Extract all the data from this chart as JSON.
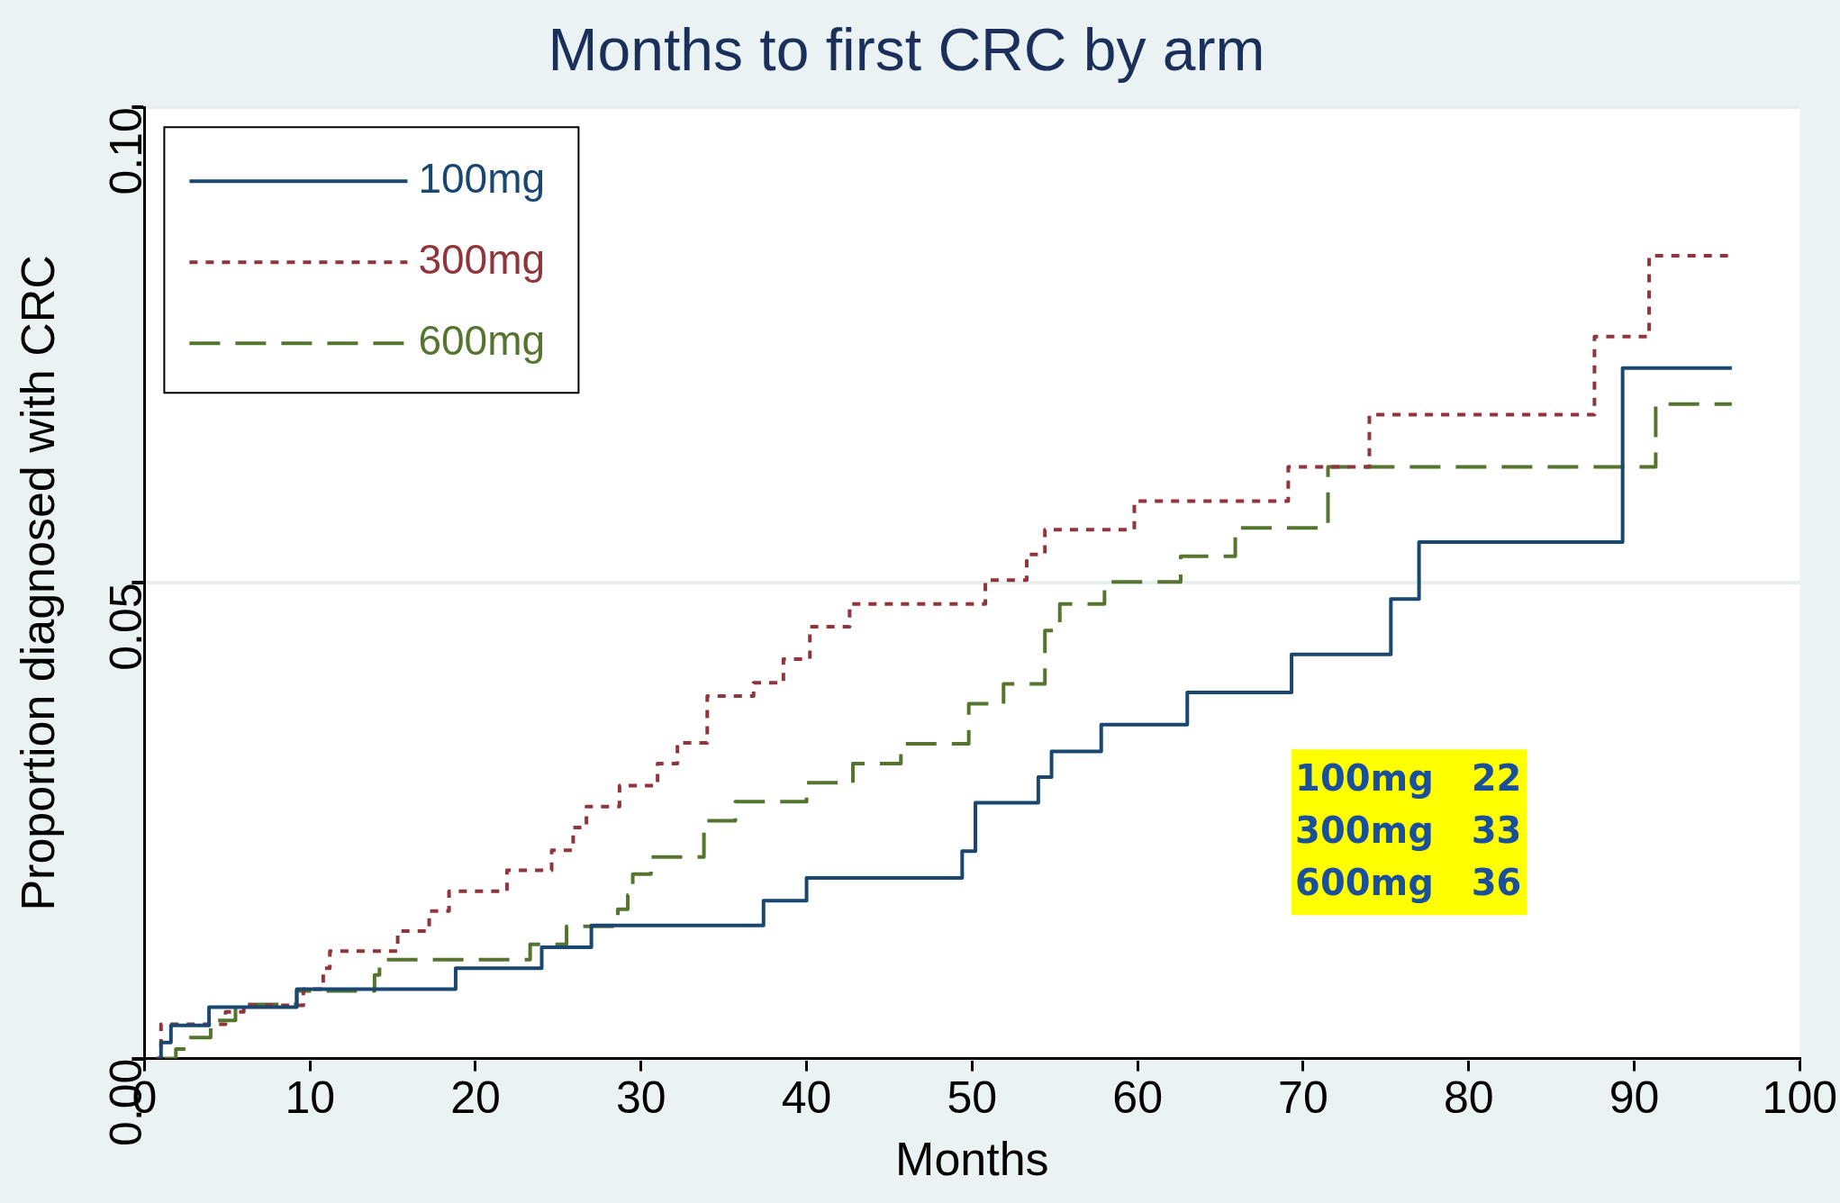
{
  "chart_data": {
    "type": "step",
    "title": "Months to first CRC by arm",
    "xlabel": "Months",
    "ylabel": "Proportion diagnosed with CRC",
    "xlim": [
      0,
      100
    ],
    "xticks": [
      0,
      10,
      20,
      30,
      40,
      50,
      60,
      70,
      80,
      90,
      100
    ],
    "ylim": [
      0,
      0.1
    ],
    "yticks": [
      {
        "value": 0,
        "label": "0.00"
      },
      {
        "value": 0.05,
        "label": "0.05"
      },
      {
        "value": 0.1,
        "label": "0.10"
      }
    ],
    "grid": "y",
    "legend": "top left",
    "marker": "none",
    "series": [
      {
        "name": "100mg",
        "color": "#1a476f",
        "line_style": "solid",
        "x": [
          0.8,
          1.0,
          1.6,
          3.9,
          9.2,
          18.8,
          24,
          27,
          37.4,
          40,
          49.4,
          50.2,
          54,
          54.8,
          57.8,
          63,
          69.3,
          75.3,
          77,
          86.3,
          89.3,
          95.9
        ],
        "values": [
          0,
          0.0017,
          0.0035,
          0.0054,
          0.0073,
          0.0095,
          0.0117,
          0.014,
          0.0166,
          0.019,
          0.0218,
          0.0269,
          0.0296,
          0.0323,
          0.0351,
          0.0385,
          0.0425,
          0.0483,
          0.0543,
          0.0543,
          0.0726,
          0.0726
        ]
      },
      {
        "name": "300mg",
        "color": "#90353b",
        "line_style": "dashed",
        "x": [
          0.7,
          1.0,
          4.9,
          6,
          9.6,
          10.8,
          11.2,
          15.3,
          17.2,
          18.4,
          21.9,
          24.6,
          25.9,
          26.7,
          28.7,
          31,
          32.2,
          34,
          36.8,
          38.6,
          40.2,
          42.6,
          50.8,
          53.3,
          54.4,
          59.8,
          69.1,
          74,
          84.7,
          87.6,
          90.9,
          95.9
        ],
        "values": [
          0,
          0.0036,
          0.0049,
          0.0056,
          0.0073,
          0.0095,
          0.0113,
          0.0134,
          0.0155,
          0.0176,
          0.0198,
          0.0219,
          0.0243,
          0.0265,
          0.0287,
          0.031,
          0.0332,
          0.0381,
          0.0395,
          0.042,
          0.0454,
          0.0478,
          0.0503,
          0.053,
          0.0556,
          0.0586,
          0.0622,
          0.0677,
          0.0677,
          0.0759,
          0.0844,
          0.0844
        ]
      },
      {
        "name": "600mg",
        "color": "#55752f",
        "line_style": "dashed",
        "x": [
          1.2,
          1.9,
          2.5,
          4,
          5.5,
          9.2,
          13.9,
          14.2,
          23.3,
          25.5,
          28.6,
          29.2,
          29.5,
          30.6,
          33.8,
          35.7,
          40,
          42.8,
          45.7,
          49.8,
          51.9,
          54.4,
          55.3,
          58,
          62.6,
          65.9,
          71.5,
          90,
          91.3,
          95.9
        ],
        "values": [
          0,
          0.001,
          0.0022,
          0.004,
          0.0057,
          0.0071,
          0.0088,
          0.0104,
          0.012,
          0.0139,
          0.0157,
          0.0172,
          0.0194,
          0.0212,
          0.025,
          0.027,
          0.029,
          0.031,
          0.0331,
          0.0373,
          0.0394,
          0.045,
          0.0478,
          0.0501,
          0.0528,
          0.0558,
          0.0622,
          0.0622,
          0.0688,
          0.0688
        ]
      }
    ],
    "annotations": [
      "100mg  22",
      "300mg  33",
      "600mg  36"
    ]
  }
}
